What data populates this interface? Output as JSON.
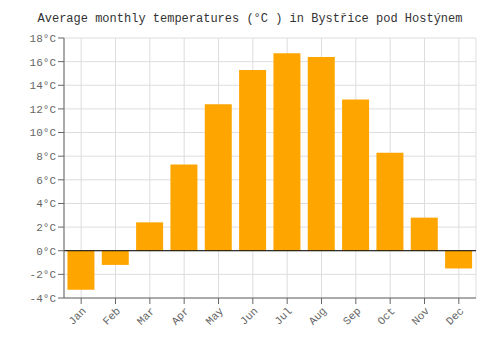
{
  "chart_data": {
    "type": "bar",
    "title": "Average monthly temperatures (°C ) in Bystřice pod Hostýnem",
    "categories": [
      "Jan",
      "Feb",
      "Mar",
      "Apr",
      "May",
      "Jun",
      "Jul",
      "Aug",
      "Sep",
      "Oct",
      "Nov",
      "Dec"
    ],
    "values": [
      -3.3,
      -1.2,
      2.4,
      7.3,
      12.4,
      15.3,
      16.7,
      16.4,
      12.8,
      8.3,
      2.8,
      -1.5
    ],
    "color": "#FFA500",
    "ylim": [
      -4,
      18
    ],
    "yticks": [
      {
        "value": -4,
        "label": "-4°C"
      },
      {
        "value": -2,
        "label": "-2°C"
      },
      {
        "value": 0,
        "label": "0°C"
      },
      {
        "value": 2,
        "label": "2°C"
      },
      {
        "value": 4,
        "label": "4°C"
      },
      {
        "value": 6,
        "label": "6°C"
      },
      {
        "value": 8,
        "label": "8°C"
      },
      {
        "value": 10,
        "label": "10°C"
      },
      {
        "value": 12,
        "label": "12°C"
      },
      {
        "value": 14,
        "label": "14°C"
      },
      {
        "value": 16,
        "label": "16°C"
      },
      {
        "value": 18,
        "label": "18°C"
      }
    ],
    "grid": true
  }
}
